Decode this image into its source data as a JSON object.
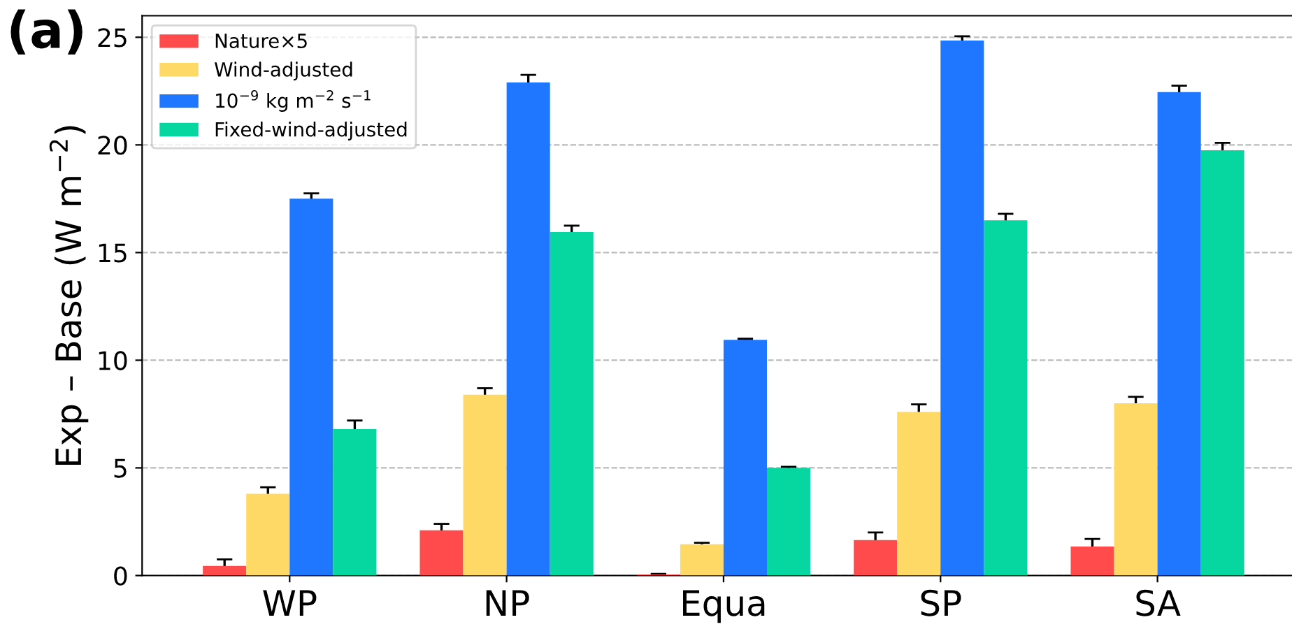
{
  "chart_data": {
    "type": "bar",
    "title": "(a)",
    "ylabel": "Exp – Base (W m$^{−2}$)",
    "categories": [
      "WP",
      "NP",
      "Equa",
      "SP",
      "SA"
    ],
    "series": [
      {
        "name": "Nature×5",
        "color": "#ff4b4b",
        "values": [
          0.45,
          2.1,
          0.05,
          1.65,
          1.35
        ],
        "errors": [
          0.3,
          0.3,
          0.03,
          0.35,
          0.35
        ]
      },
      {
        "name": "Wind-adjusted",
        "color": "#ffd966",
        "values": [
          3.8,
          8.4,
          1.45,
          7.6,
          8.0
        ],
        "errors": [
          0.3,
          0.3,
          0.07,
          0.35,
          0.3
        ]
      },
      {
        "name": "10$^{−9}$ kg m$^{−2}$ s$^{−1}$",
        "color": "#1f77ff",
        "values": [
          17.5,
          22.9,
          10.95,
          24.85,
          22.45
        ],
        "errors": [
          0.25,
          0.35,
          0.05,
          0.2,
          0.3
        ]
      },
      {
        "name": "Fixed-wind-adjusted",
        "color": "#06d6a0",
        "values": [
          6.8,
          15.95,
          5.0,
          16.5,
          19.75
        ],
        "errors": [
          0.4,
          0.3,
          0.05,
          0.3,
          0.35
        ]
      }
    ],
    "ylim": [
      0,
      26
    ],
    "yticks": [
      0,
      5,
      10,
      15,
      20,
      25
    ],
    "grid": "y",
    "legend": "top left"
  }
}
